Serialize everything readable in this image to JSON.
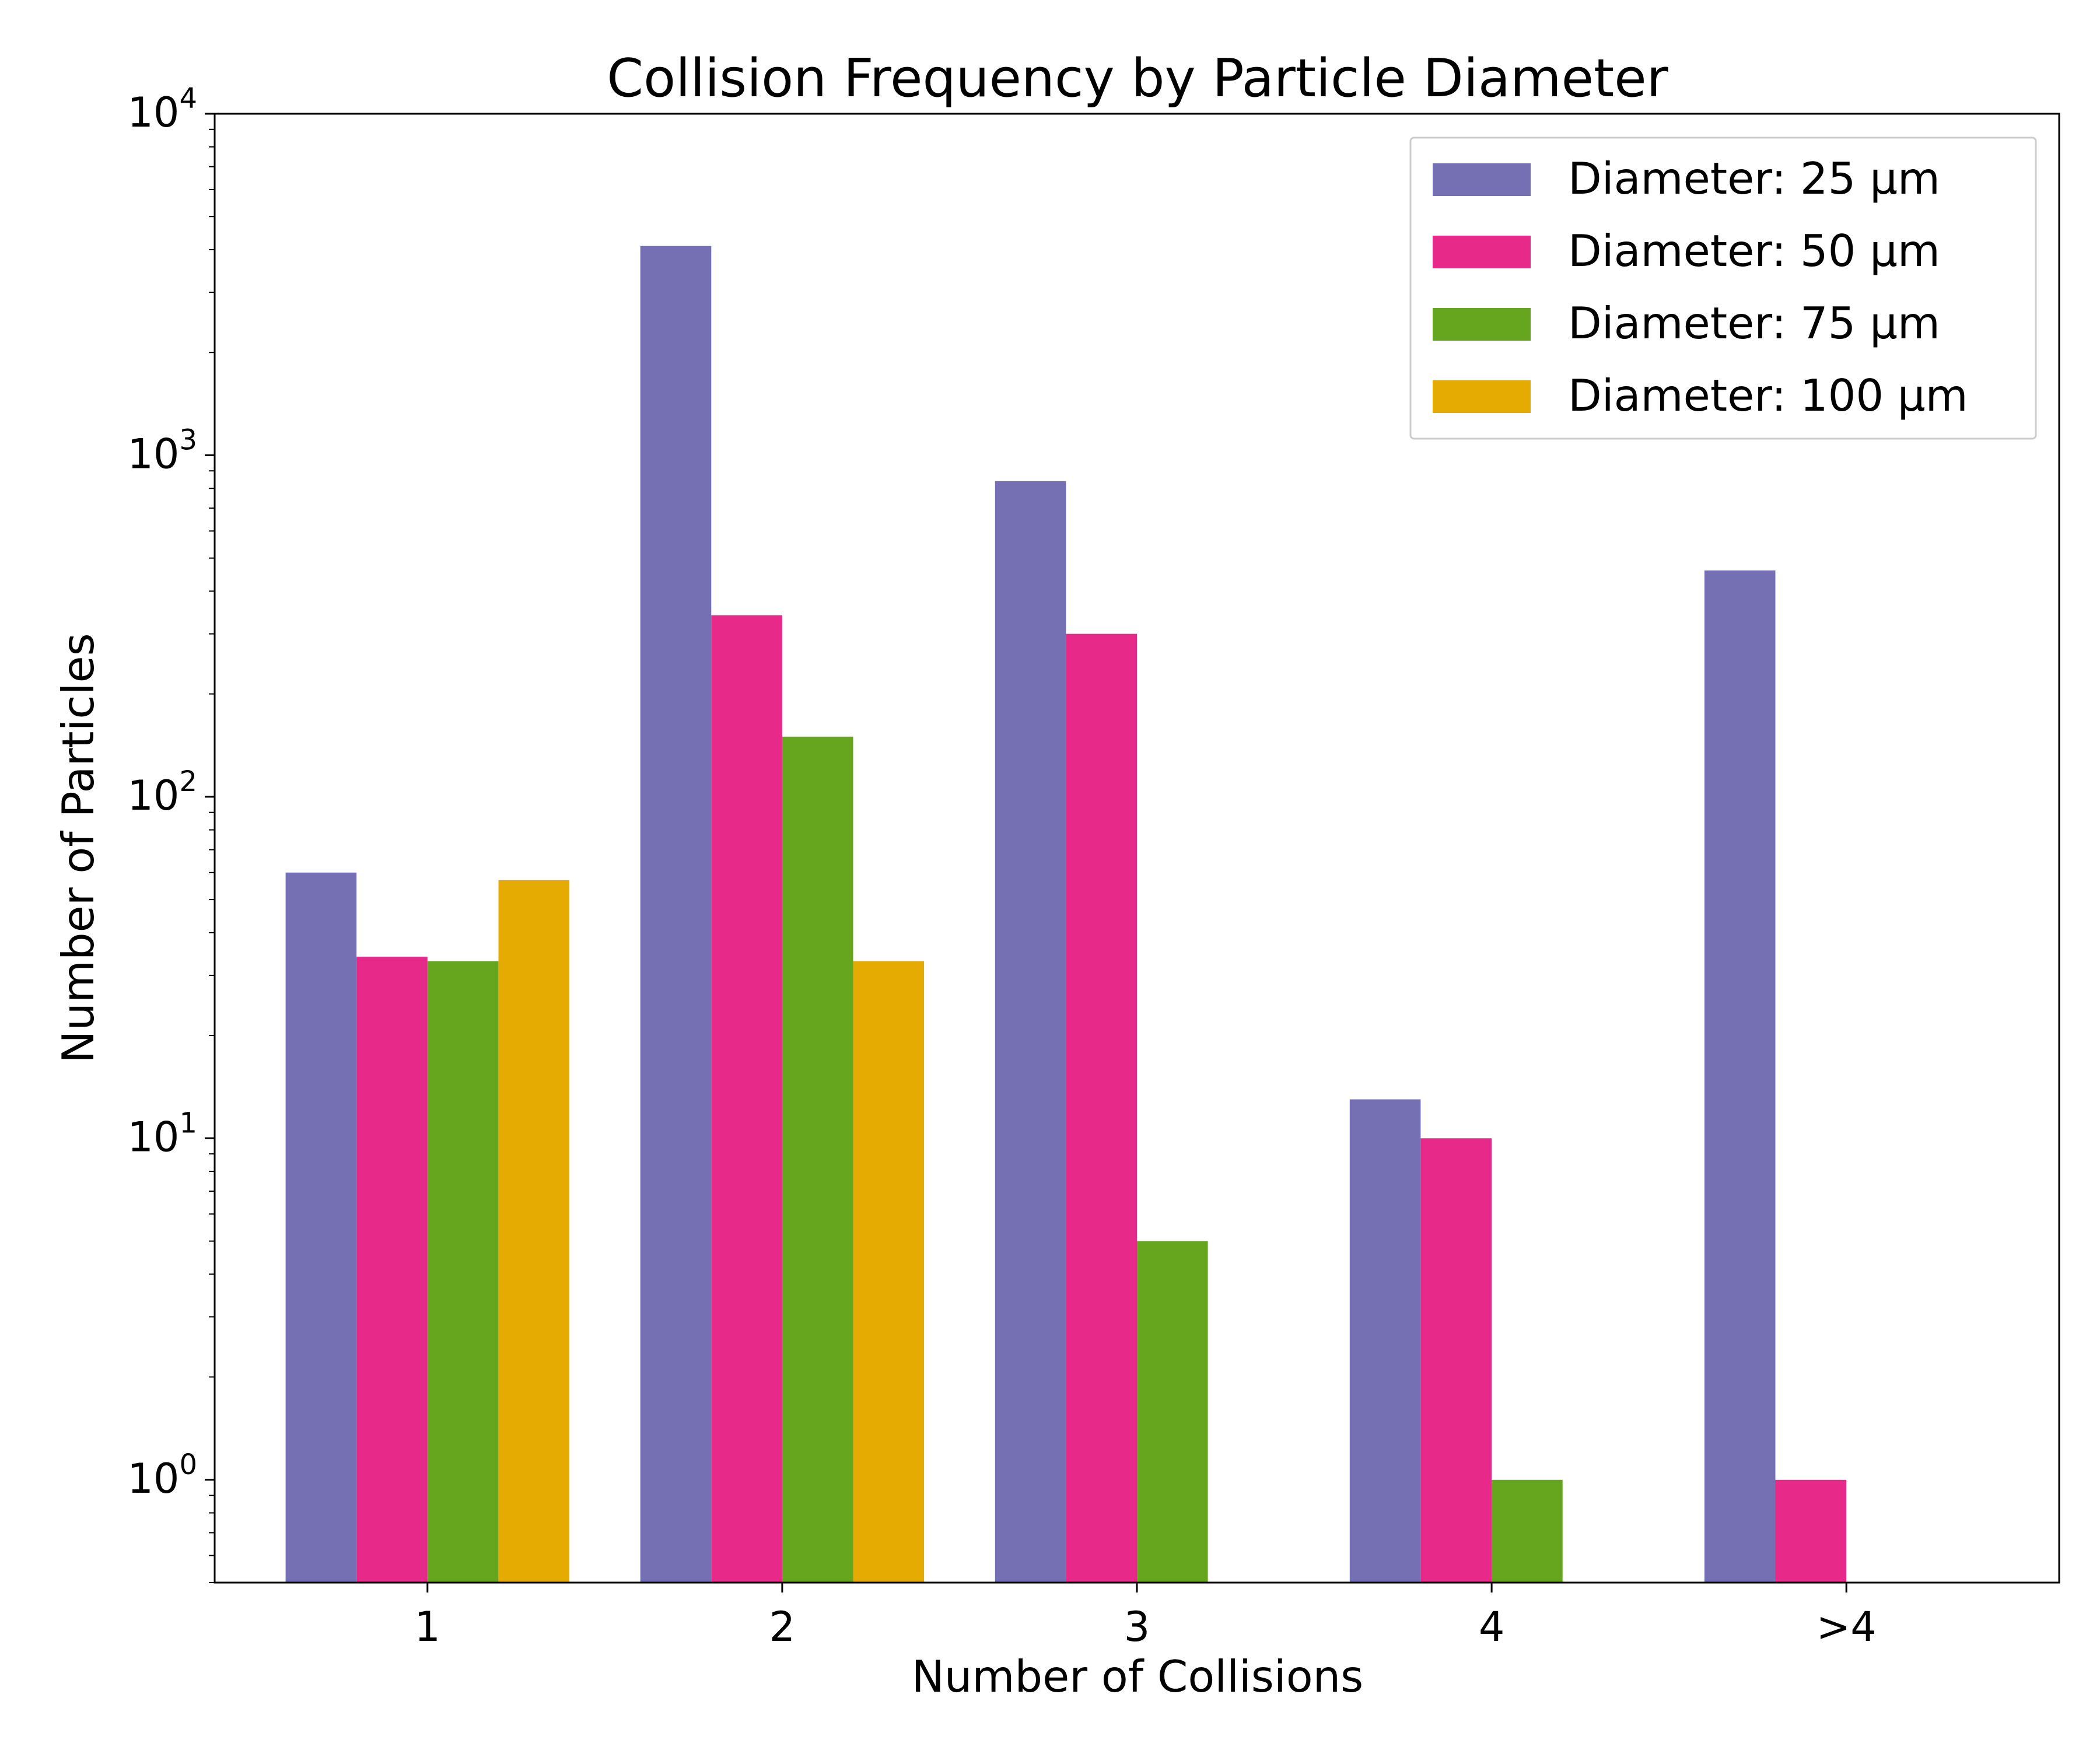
{
  "chart_data": {
    "type": "bar",
    "title": "Collision Frequency by Particle Diameter",
    "xlabel": "Number of Collisions",
    "ylabel": "Number of Particles",
    "yscale": "log",
    "ylim": [
      0.5,
      10000
    ],
    "yticks": [
      {
        "base": "10",
        "exp": "0"
      },
      {
        "base": "10",
        "exp": "1"
      },
      {
        "base": "10",
        "exp": "2"
      },
      {
        "base": "10",
        "exp": "3"
      },
      {
        "base": "10",
        "exp": "4"
      }
    ],
    "categories": [
      "1",
      "2",
      "3",
      "4",
      ">4"
    ],
    "series": [
      {
        "name": "Diameter: 25 µm",
        "color": "#7570b3",
        "values": [
          60,
          4100,
          840,
          13,
          460
        ]
      },
      {
        "name": "Diameter: 50 µm",
        "color": "#e7298a",
        "values": [
          34,
          340,
          300,
          10,
          1
        ]
      },
      {
        "name": "Diameter: 75 µm",
        "color": "#66a61e",
        "values": [
          33,
          150,
          5,
          1,
          null
        ]
      },
      {
        "name": "Diameter: 100 µm",
        "color": "#e6ab02",
        "values": [
          57,
          33,
          null,
          null,
          null
        ]
      }
    ],
    "legend_position": "top-right",
    "grid": false
  }
}
